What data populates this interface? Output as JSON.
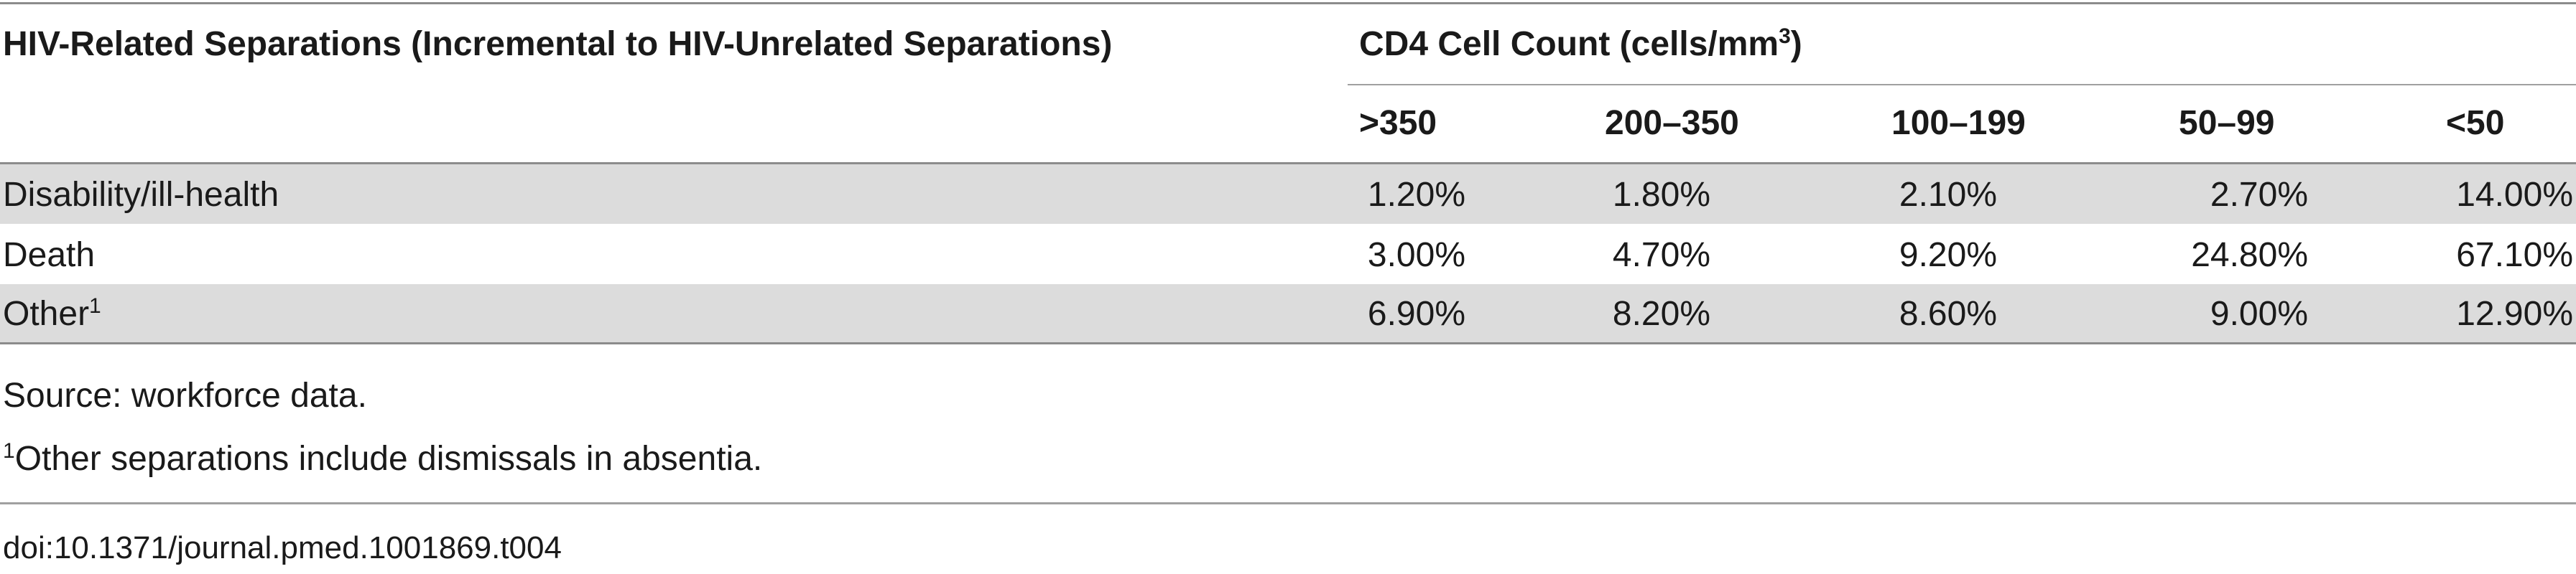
{
  "table": {
    "header": {
      "row_group_label": "HIV-Related Separations (Incremental to HIV-Unrelated Separations)",
      "column_group_label": "CD4 Cell Count (cells/mm",
      "column_group_label_superscript": "3",
      "column_group_label_suffix": ")",
      "columns": [
        ">350",
        "200–350",
        "100–199",
        "50–99",
        "<50"
      ]
    },
    "rows": [
      {
        "label": "Disability/ill-health",
        "label_superscript": "",
        "values": [
          "1.20%",
          "1.80%",
          "2.10%",
          "2.70%",
          "14.00%"
        ]
      },
      {
        "label": "Death",
        "label_superscript": "",
        "values": [
          "3.00%",
          "4.70%",
          "9.20%",
          "24.80%",
          "67.10%"
        ]
      },
      {
        "label": "Other",
        "label_superscript": "1",
        "values": [
          "6.90%",
          "8.20%",
          "8.60%",
          "9.00%",
          "12.90%"
        ]
      }
    ],
    "notes": {
      "source": "Source: workforce data.",
      "footnote_marker": "1",
      "footnote": "Other separations include dismissals in absentia."
    },
    "doi": "doi:10.1371/journal.pmed.1001869.t004"
  }
}
